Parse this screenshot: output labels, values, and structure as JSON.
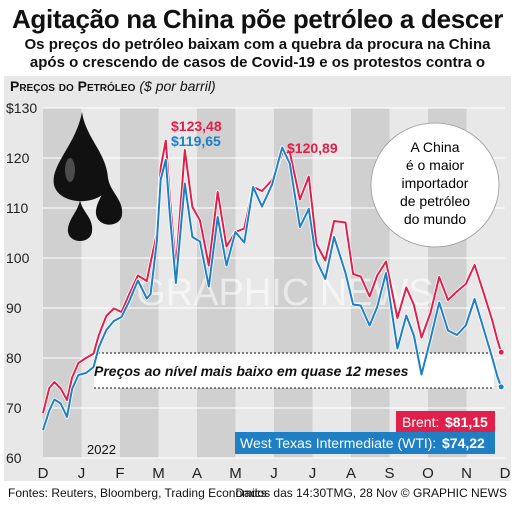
{
  "header": {
    "title": "Agitação na China põe petróleo a descer",
    "subtitle": "Os preços do petróleo baixam com a quebra da procura na China após o crescendo de casos de Covid-19 e os protestos contra o governo"
  },
  "section": {
    "label": "Preços do Petróleo",
    "unit": "($ por barril)"
  },
  "annotations": {
    "peak1_brent": "$123,48",
    "peak1_wti": "$119,65",
    "peak2_brent": "$120,89",
    "band_note": "Preços ao nível mais baixo em quase 12 meses",
    "bubble": [
      "A China",
      "é o maior",
      "importador",
      "de petróleo",
      "do mundo"
    ],
    "year": "2022",
    "watermark": "GRAPHIC NEWS"
  },
  "legend": {
    "brent_label": "Brent:",
    "brent_value": "$81,15",
    "wti_label": "West Texas Intermediate (WTI):",
    "wti_value": "$74,22"
  },
  "footer": {
    "sources": "Fontes: Reuters, Bloomberg, Trading Economics",
    "date": "Dados das 14:30TMG, 28 Nov © GRAPHIC NEWS"
  },
  "colors": {
    "brent": "#e0204a",
    "wti": "#1f7fc4",
    "panel": "#e8e8e8",
    "stripe": "#d0d0d0"
  },
  "chart_data": {
    "type": "line",
    "x_months": [
      "D",
      "J",
      "F",
      "M",
      "A",
      "M",
      "J",
      "J",
      "A",
      "S",
      "O",
      "N",
      "D"
    ],
    "yticks": [
      "$130",
      "120",
      "110",
      "100",
      "90",
      "80",
      "70",
      "60"
    ],
    "ylim": [
      60,
      130
    ],
    "x_axis_span": [
      "2021-12-01",
      "2022-12-01"
    ],
    "series": [
      {
        "name": "Brent",
        "points": [
          [
            "2021-12-01",
            69.0
          ],
          [
            "2021-12-06",
            74.0
          ],
          [
            "2021-12-10",
            75.2
          ],
          [
            "2021-12-15",
            73.9
          ],
          [
            "2021-12-20",
            71.6
          ],
          [
            "2021-12-24",
            76.1
          ],
          [
            "2021-12-29",
            79.0
          ],
          [
            "2022-01-04",
            80.0
          ],
          [
            "2022-01-10",
            80.9
          ],
          [
            "2022-01-14",
            84.5
          ],
          [
            "2022-01-20",
            88.4
          ],
          [
            "2022-01-26",
            89.9
          ],
          [
            "2022-02-01",
            89.2
          ],
          [
            "2022-02-07",
            92.7
          ],
          [
            "2022-02-14",
            96.5
          ],
          [
            "2022-02-21",
            95.4
          ],
          [
            "2022-02-24",
            99.1
          ],
          [
            "2022-03-01",
            104.9
          ],
          [
            "2022-03-04",
            118.1
          ],
          [
            "2022-03-08",
            123.48
          ],
          [
            "2022-03-11",
            112.7
          ],
          [
            "2022-03-16",
            98.0
          ],
          [
            "2022-03-23",
            121.6
          ],
          [
            "2022-03-29",
            110.2
          ],
          [
            "2022-04-04",
            107.5
          ],
          [
            "2022-04-11",
            98.5
          ],
          [
            "2022-04-18",
            113.2
          ],
          [
            "2022-04-25",
            102.3
          ],
          [
            "2022-05-02",
            105.2
          ],
          [
            "2022-05-09",
            105.9
          ],
          [
            "2022-05-16",
            114.2
          ],
          [
            "2022-05-23",
            113.4
          ],
          [
            "2022-05-31",
            115.6
          ],
          [
            "2022-06-08",
            120.89
          ],
          [
            "2022-06-14",
            121.2
          ],
          [
            "2022-06-22",
            111.7
          ],
          [
            "2022-06-29",
            116.3
          ],
          [
            "2022-07-05",
            102.8
          ],
          [
            "2022-07-12",
            99.5
          ],
          [
            "2022-07-19",
            107.4
          ],
          [
            "2022-07-28",
            107.1
          ],
          [
            "2022-08-03",
            96.8
          ],
          [
            "2022-08-09",
            96.3
          ],
          [
            "2022-08-16",
            92.3
          ],
          [
            "2022-08-22",
            96.5
          ],
          [
            "2022-08-29",
            99.3
          ],
          [
            "2022-09-07",
            88.0
          ],
          [
            "2022-09-14",
            94.1
          ],
          [
            "2022-09-20",
            90.6
          ],
          [
            "2022-09-26",
            84.1
          ],
          [
            "2022-10-03",
            88.9
          ],
          [
            "2022-10-10",
            96.2
          ],
          [
            "2022-10-17",
            91.6
          ],
          [
            "2022-10-24",
            93.3
          ],
          [
            "2022-10-31",
            94.8
          ],
          [
            "2022-11-07",
            98.6
          ],
          [
            "2022-11-14",
            93.1
          ],
          [
            "2022-11-21",
            87.5
          ],
          [
            "2022-11-25",
            83.6
          ],
          [
            "2022-11-28",
            81.15
          ]
        ]
      },
      {
        "name": "West Texas Intermediate (WTI)",
        "points": [
          [
            "2021-12-01",
            65.6
          ],
          [
            "2021-12-06",
            69.5
          ],
          [
            "2021-12-10",
            71.7
          ],
          [
            "2021-12-15",
            70.9
          ],
          [
            "2021-12-20",
            68.2
          ],
          [
            "2021-12-24",
            73.8
          ],
          [
            "2021-12-29",
            76.6
          ],
          [
            "2022-01-04",
            77.0
          ],
          [
            "2022-01-10",
            78.2
          ],
          [
            "2022-01-14",
            82.1
          ],
          [
            "2022-01-20",
            85.6
          ],
          [
            "2022-01-26",
            87.4
          ],
          [
            "2022-02-01",
            88.2
          ],
          [
            "2022-02-07",
            91.3
          ],
          [
            "2022-02-14",
            95.5
          ],
          [
            "2022-02-21",
            91.9
          ],
          [
            "2022-02-24",
            92.8
          ],
          [
            "2022-03-01",
            103.4
          ],
          [
            "2022-03-04",
            115.7
          ],
          [
            "2022-03-08",
            119.65
          ],
          [
            "2022-03-11",
            109.3
          ],
          [
            "2022-03-16",
            95.0
          ],
          [
            "2022-03-23",
            114.9
          ],
          [
            "2022-03-29",
            104.2
          ],
          [
            "2022-04-04",
            103.3
          ],
          [
            "2022-04-11",
            94.3
          ],
          [
            "2022-04-18",
            108.2
          ],
          [
            "2022-04-25",
            98.5
          ],
          [
            "2022-05-02",
            105.2
          ],
          [
            "2022-05-09",
            103.1
          ],
          [
            "2022-05-16",
            114.2
          ],
          [
            "2022-05-23",
            110.3
          ],
          [
            "2022-05-31",
            114.7
          ],
          [
            "2022-06-08",
            122.1
          ],
          [
            "2022-06-14",
            118.9
          ],
          [
            "2022-06-22",
            106.2
          ],
          [
            "2022-06-29",
            109.8
          ],
          [
            "2022-07-05",
            99.5
          ],
          [
            "2022-07-12",
            95.8
          ],
          [
            "2022-07-19",
            104.2
          ],
          [
            "2022-07-28",
            97.0
          ],
          [
            "2022-08-03",
            90.7
          ],
          [
            "2022-08-09",
            90.5
          ],
          [
            "2022-08-16",
            86.5
          ],
          [
            "2022-08-22",
            90.2
          ],
          [
            "2022-08-29",
            97.0
          ],
          [
            "2022-09-07",
            81.9
          ],
          [
            "2022-09-14",
            88.5
          ],
          [
            "2022-09-20",
            84.5
          ],
          [
            "2022-09-26",
            76.7
          ],
          [
            "2022-10-03",
            83.6
          ],
          [
            "2022-10-10",
            91.1
          ],
          [
            "2022-10-17",
            85.5
          ],
          [
            "2022-10-24",
            84.6
          ],
          [
            "2022-10-31",
            86.5
          ],
          [
            "2022-11-07",
            91.8
          ],
          [
            "2022-11-14",
            85.9
          ],
          [
            "2022-11-21",
            80.0
          ],
          [
            "2022-11-25",
            76.3
          ],
          [
            "2022-11-28",
            74.22
          ]
        ]
      }
    ],
    "reference_lines": [
      81,
      74
    ]
  }
}
